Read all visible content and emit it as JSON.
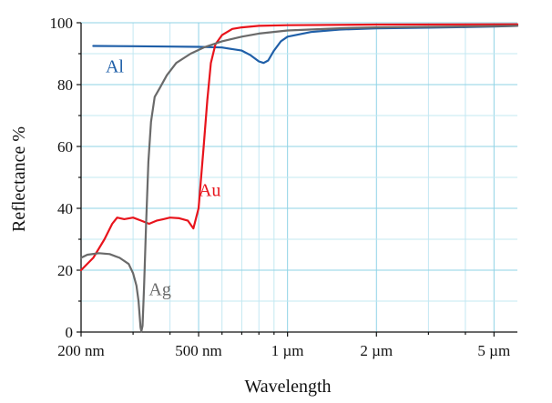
{
  "chart_data": {
    "type": "line",
    "x_scale": "log",
    "xlabel": "Wavelength",
    "ylabel": "Reflectance %",
    "xlim": [
      200,
      6000
    ],
    "ylim": [
      0,
      100
    ],
    "grid": true,
    "x_ticks": [
      {
        "value": 200,
        "label": "200 nm"
      },
      {
        "value": 500,
        "label": "500 nm"
      },
      {
        "value": 1000,
        "label": "1 µm"
      },
      {
        "value": 2000,
        "label": "2 µm"
      },
      {
        "value": 5000,
        "label": "5 µm"
      }
    ],
    "y_ticks": [
      {
        "value": 0,
        "label": "0"
      },
      {
        "value": 20,
        "label": "20"
      },
      {
        "value": 40,
        "label": "40"
      },
      {
        "value": 60,
        "label": "60"
      },
      {
        "value": 80,
        "label": "80"
      },
      {
        "value": 100,
        "label": "100"
      }
    ],
    "series": [
      {
        "name": "Al",
        "color": "#1f5fa8",
        "label_at": {
          "x": 260,
          "y": 86
        },
        "points": [
          [
            220,
            92.5
          ],
          [
            300,
            92.4
          ],
          [
            400,
            92.3
          ],
          [
            500,
            92.2
          ],
          [
            600,
            92.0
          ],
          [
            700,
            91.0
          ],
          [
            750,
            89.5
          ],
          [
            800,
            87.5
          ],
          [
            830,
            87.0
          ],
          [
            860,
            87.8
          ],
          [
            900,
            91.0
          ],
          [
            950,
            94.0
          ],
          [
            1000,
            95.5
          ],
          [
            1200,
            97.0
          ],
          [
            1500,
            97.8
          ],
          [
            2000,
            98.2
          ],
          [
            3000,
            98.4
          ],
          [
            4000,
            98.6
          ],
          [
            5000,
            98.8
          ],
          [
            6000,
            99.0
          ]
        ]
      },
      {
        "name": "Au",
        "color": "#e8141c",
        "label_at": {
          "x": 545,
          "y": 46
        },
        "points": [
          [
            200,
            20
          ],
          [
            220,
            24
          ],
          [
            240,
            30
          ],
          [
            255,
            35
          ],
          [
            265,
            37
          ],
          [
            280,
            36.5
          ],
          [
            300,
            37
          ],
          [
            320,
            36
          ],
          [
            340,
            35
          ],
          [
            360,
            36
          ],
          [
            380,
            36.5
          ],
          [
            400,
            37
          ],
          [
            430,
            36.8
          ],
          [
            460,
            36
          ],
          [
            480,
            33.5
          ],
          [
            500,
            40
          ],
          [
            510,
            50
          ],
          [
            520,
            60
          ],
          [
            535,
            75
          ],
          [
            550,
            87
          ],
          [
            570,
            93
          ],
          [
            600,
            96
          ],
          [
            650,
            98
          ],
          [
            700,
            98.5
          ],
          [
            800,
            99
          ],
          [
            1000,
            99.2
          ],
          [
            2000,
            99.4
          ],
          [
            6000,
            99.5
          ]
        ]
      },
      {
        "name": "Ag",
        "color": "#6a6a6a",
        "label_at": {
          "x": 370,
          "y": 14
        },
        "points": [
          [
            200,
            24
          ],
          [
            210,
            25
          ],
          [
            230,
            25.5
          ],
          [
            250,
            25.2
          ],
          [
            270,
            24
          ],
          [
            290,
            22
          ],
          [
            300,
            19
          ],
          [
            308,
            15
          ],
          [
            313,
            10
          ],
          [
            316,
            5
          ],
          [
            318,
            1.5
          ],
          [
            320,
            0.2
          ],
          [
            323,
            2
          ],
          [
            327,
            15
          ],
          [
            332,
            35
          ],
          [
            338,
            55
          ],
          [
            345,
            68
          ],
          [
            355,
            76
          ],
          [
            370,
            79
          ],
          [
            390,
            83
          ],
          [
            420,
            87
          ],
          [
            470,
            90
          ],
          [
            520,
            92
          ],
          [
            600,
            94
          ],
          [
            700,
            95.5
          ],
          [
            800,
            96.5
          ],
          [
            1000,
            97.5
          ],
          [
            1500,
            98.2
          ],
          [
            2000,
            98.5
          ],
          [
            4000,
            98.8
          ],
          [
            6000,
            99.0
          ]
        ]
      }
    ]
  }
}
